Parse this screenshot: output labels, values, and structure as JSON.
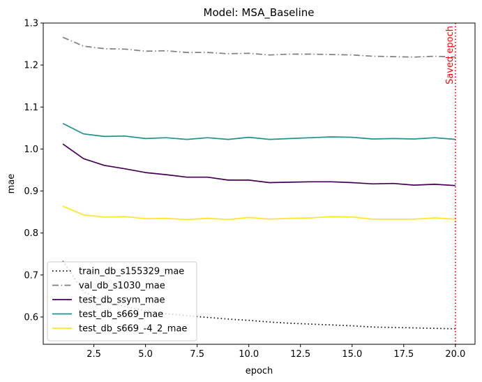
{
  "chart_data": {
    "type": "line",
    "title": "Model: MSA_Baseline",
    "xlabel": "epoch",
    "ylabel": "mae",
    "xlim": [
      0.05,
      20.95
    ],
    "ylim": [
      0.535,
      1.3
    ],
    "xticks": [
      2.5,
      5.0,
      7.5,
      10.0,
      12.5,
      15.0,
      17.5,
      20.0
    ],
    "xtick_labels": [
      "2.5",
      "5.0",
      "7.5",
      "10.0",
      "12.5",
      "15.0",
      "17.5",
      "20.0"
    ],
    "yticks": [
      0.6,
      0.7,
      0.8,
      0.9,
      1.0,
      1.1,
      1.2,
      1.3
    ],
    "ytick_labels": [
      "0.6",
      "0.7",
      "0.8",
      "0.9",
      "1.0",
      "1.1",
      "1.2",
      "1.3"
    ],
    "grid": false,
    "legend_position": "lower-left",
    "x": [
      1,
      2,
      3,
      4,
      5,
      6,
      7,
      8,
      9,
      10,
      11,
      12,
      13,
      14,
      15,
      16,
      17,
      18,
      19,
      20
    ],
    "series": [
      {
        "name": "train_db_s155329_mae",
        "color": "#000000",
        "dash": "dotted",
        "values": [
          0.733,
          0.66,
          0.637,
          0.625,
          0.615,
          0.608,
          0.603,
          0.599,
          0.595,
          0.592,
          0.588,
          0.585,
          0.583,
          0.581,
          0.579,
          0.576,
          0.575,
          0.574,
          0.573,
          0.572
        ]
      },
      {
        "name": "val_db_s1030_mae",
        "color": "#808080",
        "dash": "dashdot",
        "values": [
          1.266,
          1.245,
          1.239,
          1.238,
          1.233,
          1.234,
          1.23,
          1.23,
          1.227,
          1.228,
          1.224,
          1.226,
          1.226,
          1.225,
          1.224,
          1.221,
          1.22,
          1.219,
          1.221,
          1.219
        ]
      },
      {
        "name": "test_db_ssym_mae",
        "color": "#440154",
        "dash": "solid",
        "values": [
          1.012,
          0.977,
          0.961,
          0.953,
          0.944,
          0.939,
          0.933,
          0.933,
          0.926,
          0.926,
          0.92,
          0.921,
          0.922,
          0.922,
          0.92,
          0.917,
          0.918,
          0.914,
          0.916,
          0.913
        ]
      },
      {
        "name": "test_db_s669_mae",
        "color": "#21918c",
        "dash": "solid",
        "values": [
          1.061,
          1.036,
          1.03,
          1.031,
          1.025,
          1.027,
          1.023,
          1.027,
          1.023,
          1.028,
          1.023,
          1.025,
          1.027,
          1.029,
          1.028,
          1.024,
          1.025,
          1.024,
          1.027,
          1.023
        ]
      },
      {
        "name": "test_db_s669_-4_2_mae",
        "color": "#fde725",
        "dash": "solid",
        "values": [
          0.864,
          0.843,
          0.838,
          0.839,
          0.834,
          0.835,
          0.832,
          0.835,
          0.832,
          0.837,
          0.833,
          0.835,
          0.836,
          0.839,
          0.838,
          0.833,
          0.833,
          0.833,
          0.836,
          0.833
        ]
      }
    ],
    "annotation": {
      "label": "Saved epoch",
      "x": 20,
      "color": "#ff0000"
    }
  }
}
